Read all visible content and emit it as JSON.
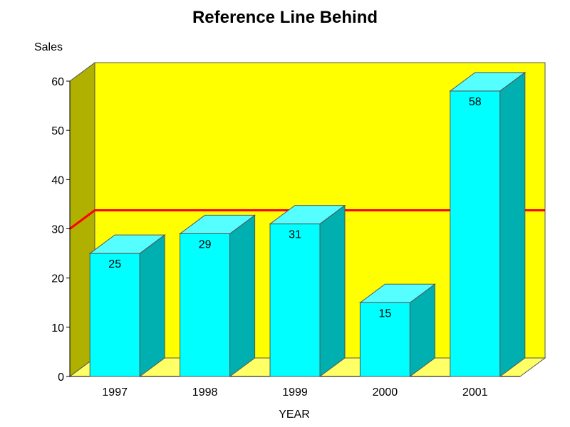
{
  "chart_data": {
    "type": "bar",
    "title": "Reference Line Behind",
    "xlabel": "YEAR",
    "ylabel": "Sales",
    "categories": [
      "1997",
      "1998",
      "1999",
      "2000",
      "2001"
    ],
    "values": [
      25,
      29,
      31,
      15,
      58
    ],
    "data_labels": [
      "25",
      "29",
      "31",
      "15",
      "58"
    ],
    "ylim": [
      0,
      60
    ],
    "yticks": [
      0,
      10,
      20,
      30,
      40,
      50,
      60
    ],
    "ytick_labels": [
      "0",
      "10",
      "20",
      "30",
      "40",
      "50",
      "60"
    ],
    "reference_line": {
      "value": 30,
      "color": "#ff0000",
      "placement": "behind"
    },
    "grid": false,
    "legend": "none",
    "style": "3d",
    "colors": {
      "back_wall": "#ffff00",
      "side_wall": "#b0b000",
      "floor": "#ffff66",
      "bar_front": "#00ffff",
      "bar_top": "#55ffff",
      "bar_side": "#00b0b0",
      "outline": "#555555"
    }
  }
}
